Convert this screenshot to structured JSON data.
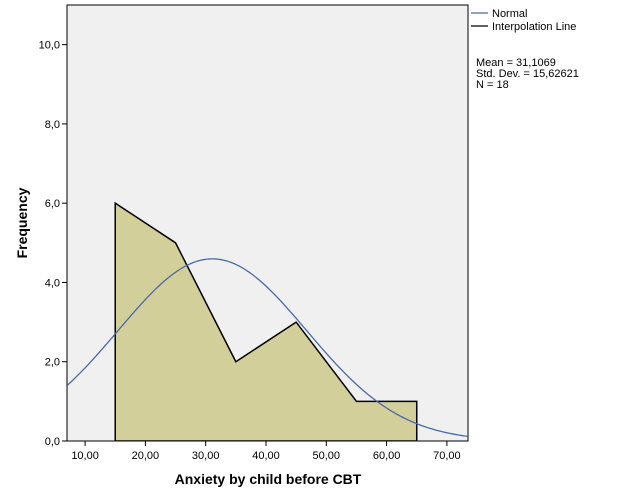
{
  "chart_data": {
    "type": "area",
    "xlabel": "Anxiety by child before CBT",
    "ylabel": "Frequency",
    "xlim": [
      7,
      73.5
    ],
    "ylim": [
      0,
      11
    ],
    "x_ticks": [
      10,
      20,
      30,
      40,
      50,
      60,
      70
    ],
    "x_tick_labels": [
      "10,00",
      "20,00",
      "30,00",
      "40,00",
      "50,00",
      "60,00",
      "70,00"
    ],
    "y_ticks": [
      0,
      2,
      4,
      6,
      8,
      10
    ],
    "y_tick_labels": [
      "0,0",
      "2,0",
      "4,0",
      "6,0",
      "8,0",
      "10,0"
    ],
    "grid": false,
    "background": "#f0f0f0",
    "series": [
      {
        "name": "Interpolation Line",
        "x": [
          15,
          15,
          25,
          35,
          45,
          55,
          65,
          65
        ],
        "y": [
          0,
          6,
          5,
          2,
          3,
          1,
          1,
          0
        ],
        "fill": "#d3cf9a",
        "color": "#000000"
      },
      {
        "name": "Normal",
        "distribution": "normal",
        "mean": 31.1069,
        "sd": 15.62621,
        "n": 18,
        "bin_width": 10,
        "color": "#4a6aa8"
      }
    ],
    "legend": {
      "position": "right",
      "items": [
        {
          "label": "Normal",
          "color": "#4a6aa8"
        },
        {
          "label": "Interpolation Line",
          "color": "#000000"
        }
      ]
    },
    "stats": {
      "mean_label": "Mean = 31,1069",
      "sd_label": "Std. Dev. = 15,62621",
      "n_label": "N = 18"
    }
  }
}
